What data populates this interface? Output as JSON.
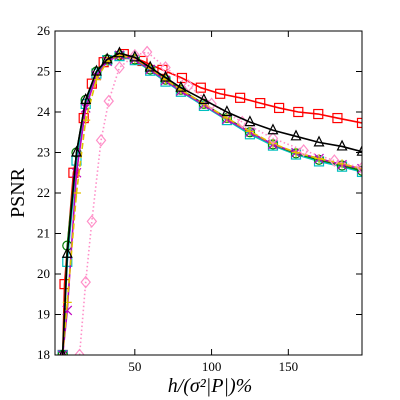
{
  "chart_data": {
    "type": "line",
    "xlabel": "h/(σ²|P|)%",
    "ylabel": "PSNR",
    "xlim": [
      -2,
      198
    ],
    "xticks": [
      50,
      100,
      150
    ],
    "ylim": [
      18,
      26
    ],
    "yticks": [
      18,
      19,
      20,
      21,
      22,
      23,
      24,
      25,
      26
    ],
    "series": [
      {
        "color": "#ff0000",
        "marker": "square",
        "dash": "solid",
        "x": [
          3,
          4.2,
          10,
          16.7,
          22,
          29.7,
          42.8,
          55,
          68,
          80.7,
          93,
          105.6,
          118.6,
          131.7,
          144,
          156.5,
          169.5,
          182,
          198
        ],
        "values": [
          18,
          19.75,
          22.5,
          23.85,
          24.7,
          25.23,
          25.43,
          25.26,
          25.04,
          24.84,
          24.6,
          24.45,
          24.35,
          24.22,
          24.1,
          24.0,
          23.95,
          23.85,
          23.73
        ]
      },
      {
        "color": "#00bfbf",
        "marker": "square",
        "dash": "solid",
        "x": [
          3,
          6,
          12,
          18,
          25,
          32,
          40,
          50,
          60,
          70,
          80,
          95,
          110,
          125,
          140,
          155,
          170,
          185,
          198
        ],
        "values": [
          18,
          20.3,
          22.8,
          24.2,
          24.95,
          25.28,
          25.38,
          25.28,
          25.02,
          24.75,
          24.5,
          24.15,
          23.8,
          23.45,
          23.17,
          22.95,
          22.78,
          22.65,
          22.52
        ]
      },
      {
        "color": "#008000",
        "marker": "circle",
        "dash": "solid",
        "x": [
          3,
          6,
          12,
          18,
          25,
          32,
          40,
          50,
          60,
          70,
          80,
          95,
          110,
          125,
          140,
          155,
          170,
          185,
          198
        ],
        "values": [
          18,
          20.7,
          23,
          24.3,
          25.0,
          25.3,
          25.4,
          25.3,
          25.05,
          24.8,
          24.55,
          24.2,
          23.85,
          23.5,
          23.2,
          22.98,
          22.82,
          22.68,
          22.55
        ]
      },
      {
        "color": "#bf00bf",
        "marker": "x",
        "dash": "solid",
        "x": [
          3,
          6,
          12,
          18,
          25,
          32,
          40,
          50,
          60,
          70,
          80,
          95,
          110,
          125,
          140,
          155,
          170,
          185,
          198
        ],
        "values": [
          18,
          19.1,
          22.5,
          24.1,
          24.9,
          25.25,
          25.4,
          25.3,
          25.05,
          24.78,
          24.52,
          24.18,
          23.82,
          23.5,
          23.2,
          23.0,
          22.85,
          22.7,
          22.6
        ]
      },
      {
        "color": "#e0c000",
        "marker": "plus",
        "dash": "dashed",
        "x": [
          3,
          6,
          12,
          18,
          25,
          32,
          40,
          50,
          60,
          70,
          80,
          95,
          110,
          125,
          140,
          155,
          170,
          185,
          198
        ],
        "values": [
          18,
          19.3,
          22.0,
          23.8,
          24.8,
          25.25,
          25.4,
          25.32,
          25.08,
          24.8,
          24.55,
          24.2,
          23.85,
          23.52,
          23.22,
          23.0,
          22.85,
          22.72,
          22.6
        ]
      },
      {
        "color": "#ff8fc8",
        "marker": "diamond",
        "dash": "dotted",
        "x": [
          14,
          18,
          22,
          28,
          33,
          40,
          50,
          58,
          70,
          85,
          100,
          120,
          140,
          160,
          180,
          198
        ],
        "values": [
          18,
          19.8,
          21.3,
          23.3,
          24.27,
          25.1,
          25.4,
          25.48,
          25.1,
          24.65,
          24.2,
          23.75,
          23.35,
          23.05,
          22.8,
          22.62
        ]
      },
      {
        "color": "#000000",
        "marker": "triangle",
        "dash": "solid",
        "x": [
          3,
          6,
          12,
          18,
          25,
          32,
          40,
          50,
          60,
          70,
          80,
          95,
          110,
          125,
          140,
          155,
          170,
          185,
          198
        ],
        "values": [
          18,
          20.5,
          23,
          24.3,
          25.0,
          25.3,
          25.45,
          25.35,
          25.1,
          24.85,
          24.6,
          24.3,
          24.0,
          23.75,
          23.55,
          23.4,
          23.25,
          23.15,
          23.02
        ]
      }
    ]
  }
}
